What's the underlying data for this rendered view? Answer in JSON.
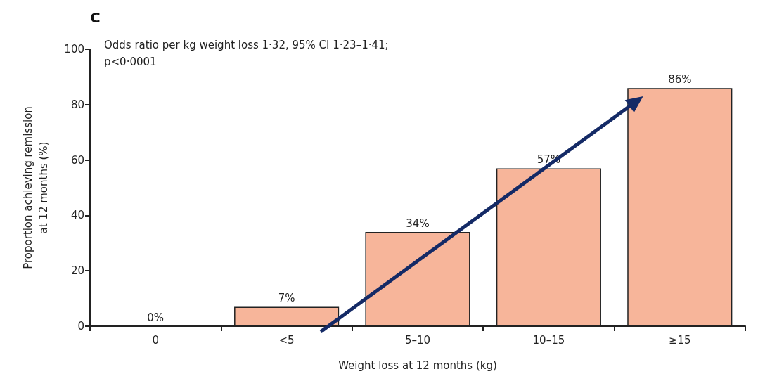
{
  "chart_data": {
    "type": "bar",
    "title": "C",
    "annotations": [
      "Odds ratio per kg weight loss 1·32, 95% CI 1·23–1·41;",
      "p<0·0001"
    ],
    "xlabel": "Weight loss at 12 months (kg)",
    "ylabel": "Proportion achieving remission\nat 12 months (%)",
    "categories": [
      "0",
      "<5",
      "5–10",
      "10–15",
      "≥15"
    ],
    "values": [
      0,
      7,
      34,
      57,
      86
    ],
    "value_labels": [
      "0%",
      "7%",
      "34%",
      "57%",
      "86%"
    ],
    "color": "#f7b59a",
    "ylim": [
      0,
      100
    ],
    "yticks": [
      0,
      20,
      40,
      60,
      80,
      100
    ],
    "grid": false
  }
}
